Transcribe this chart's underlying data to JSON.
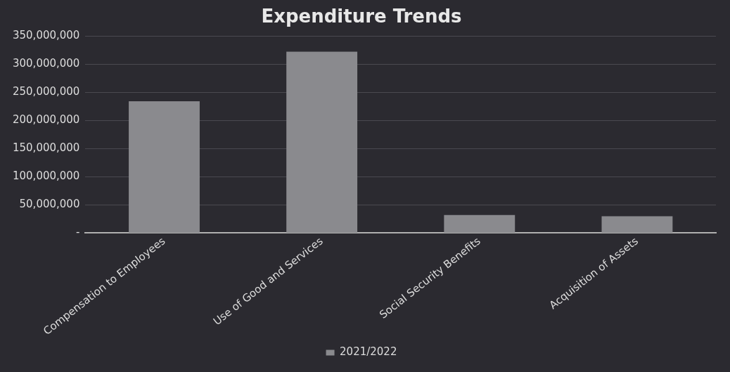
{
  "chart_data": {
    "type": "bar",
    "title": "Expenditure Trends",
    "categories": [
      "Compensation to Employees",
      "Use of Good and Services",
      "Social Security Benefits",
      "Acquisition of Assets"
    ],
    "series": [
      {
        "name": "2021/2022",
        "color": "#8a8a8e",
        "values": [
          234000000,
          322000000,
          32000000,
          30000000
        ]
      }
    ],
    "ylim": [
      0,
      350000000
    ],
    "yticks": [
      {
        "value": 0,
        "label": "-"
      },
      {
        "value": 50000000,
        "label": "50,000,000"
      },
      {
        "value": 100000000,
        "label": "100,000,000"
      },
      {
        "value": 150000000,
        "label": "150,000,000"
      },
      {
        "value": 200000000,
        "label": "200,000,000"
      },
      {
        "value": 250000000,
        "label": "250,000,000"
      },
      {
        "value": 300000000,
        "label": "300,000,000"
      },
      {
        "value": 350000000,
        "label": "350,000,000"
      }
    ],
    "grid": "y",
    "legend": "bottom"
  }
}
